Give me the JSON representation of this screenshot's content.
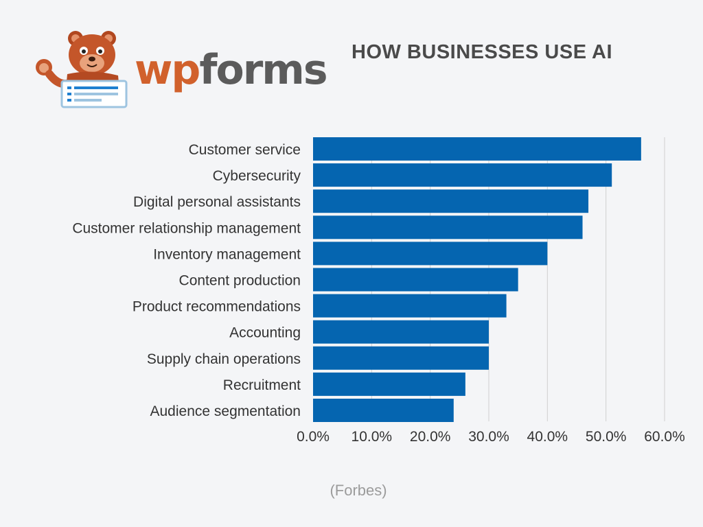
{
  "brand": {
    "wordmark_wp": "wp",
    "wordmark_forms": "forms",
    "mascot_icon": "bear-mascot-icon"
  },
  "colors": {
    "bar": "#0565b0",
    "grid": "#cfcfcf",
    "label": "#333333",
    "background": "#f4f5f7",
    "brand_orange": "#d1612c",
    "brand_gray": "#5b5b5b"
  },
  "source": "(Forbes)",
  "chart_data": {
    "type": "bar",
    "orientation": "horizontal",
    "title": "HOW BUSINESSES USE AI",
    "categories": [
      "Customer service",
      "Cybersecurity",
      "Digital personal assistants",
      "Customer relationship management",
      "Inventory management",
      "Content production",
      "Product recommendations",
      "Accounting",
      "Supply chain operations",
      "Recruitment",
      "Audience segmentation"
    ],
    "values": [
      56,
      51,
      47,
      46,
      40,
      35,
      33,
      30,
      30,
      26,
      24
    ],
    "xlim": [
      0,
      60
    ],
    "xticks": [
      0,
      10,
      20,
      30,
      40,
      50,
      60
    ],
    "xtick_labels": [
      "0.0%",
      "10.0%",
      "20.0%",
      "30.0%",
      "40.0%",
      "50.0%",
      "60.0%"
    ],
    "grid": "vertical",
    "legend": "none"
  }
}
